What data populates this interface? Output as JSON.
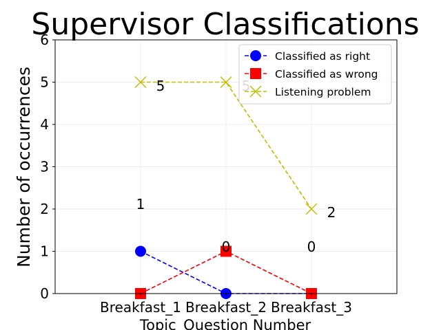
{
  "chart_data": {
    "type": "line",
    "title": "Supervisor Classifications",
    "xlabel": "Topic_Question Number",
    "ylabel": "Number of occurrences",
    "categories": [
      "Breakfast_1",
      "Breakfast_2",
      "Breakfast_3"
    ],
    "ylim": [
      0,
      6
    ],
    "yticks": [
      "0",
      "1",
      "2",
      "3",
      "4",
      "5",
      "6"
    ],
    "grid": true,
    "legend_position": "top-right",
    "series": [
      {
        "name": "Classified as right",
        "values": [
          1,
          0,
          0
        ],
        "color": "#0000ff",
        "marker": "circle",
        "linestyle": "dashed"
      },
      {
        "name": "Classified as wrong",
        "values": [
          0,
          1,
          0
        ],
        "color": "#ff0000",
        "marker": "square",
        "linestyle": "dashed"
      },
      {
        "name": "Listening problem",
        "values": [
          5,
          5,
          2
        ],
        "color": "#bfbf00",
        "marker": "x",
        "linestyle": "dashed"
      }
    ],
    "annotations": [
      "1",
      "0",
      "0",
      "5",
      "5",
      "2"
    ]
  }
}
